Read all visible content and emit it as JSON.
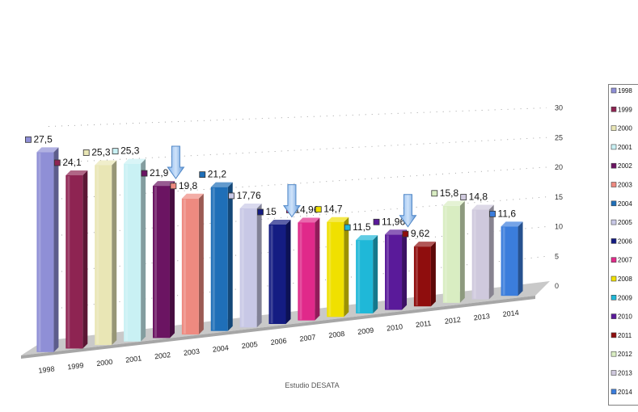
{
  "chart_data": {
    "type": "bar",
    "title": "",
    "xlabel": "Estudio DESATA",
    "ylabel": "",
    "ylim": [
      0,
      30
    ],
    "yticks": [
      0,
      5,
      10,
      15,
      20,
      25,
      30
    ],
    "grid": true,
    "legend_position": "right",
    "categories": [
      "1998",
      "1999",
      "2000",
      "2001",
      "2002",
      "2003",
      "2004",
      "2005",
      "2006",
      "2007",
      "2008",
      "2009",
      "2010",
      "2011",
      "2012",
      "2013",
      "2014"
    ],
    "values": [
      27.5,
      24.1,
      25.3,
      25.3,
      21.9,
      19.8,
      21.2,
      17.76,
      15,
      14.96,
      14.7,
      11.5,
      11.96,
      9.62,
      15.8,
      14.8,
      11.6
    ],
    "value_labels": [
      "27,5",
      "24,1",
      "25,3",
      "25,3",
      "21,9",
      "19,8",
      "21,2",
      "17,76",
      "15",
      "14,96",
      "14,7",
      "11,5",
      "11,96",
      "9,62",
      "15,8",
      "14,8",
      "11,6"
    ],
    "colors": [
      "#8f8fd6",
      "#8e2452",
      "#e9e6b5",
      "#c9f1f4",
      "#6b1462",
      "#ee8a80",
      "#1f6fb8",
      "#c8c8e6",
      "#141c82",
      "#e0298a",
      "#f0e000",
      "#1fb8d8",
      "#5a1a9a",
      "#8f0d0d",
      "#d9edc2",
      "#cfc9dd",
      "#3b7ddc"
    ],
    "arrows_after_index": [
      4,
      8,
      12
    ],
    "legend": [
      "1998",
      "1999",
      "2000",
      "2001",
      "2002",
      "2003",
      "2004",
      "2005",
      "2006",
      "2007",
      "2008",
      "2009",
      "2010",
      "2011",
      "2012",
      "2013",
      "2014"
    ]
  }
}
